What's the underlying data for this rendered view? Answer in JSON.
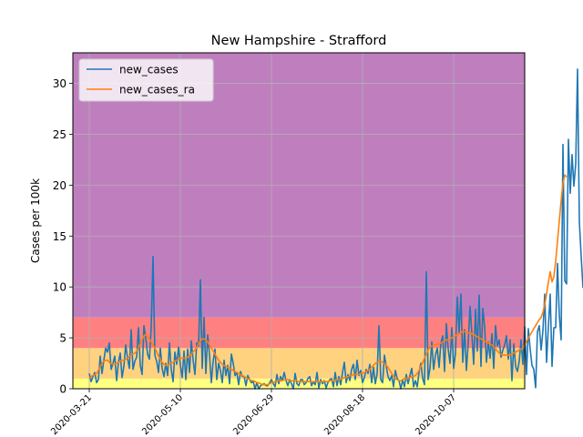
{
  "chart_data": {
    "type": "line",
    "title": "New Hampshire - Strafford",
    "xlabel": "",
    "ylabel": "Cases per 100k",
    "x_start": "2020-03-21",
    "xlim": [
      "2020-03-12",
      "2020-11-15"
    ],
    "ylim": [
      0,
      33
    ],
    "xticks": [
      "2020-03-21",
      "2020-05-10",
      "2020-06-29",
      "2020-08-18",
      "2020-10-07"
    ],
    "yticks": [
      0,
      5,
      10,
      15,
      20,
      25,
      30
    ],
    "grid": true,
    "legend_position": "upper-left",
    "bands": [
      {
        "from": 0,
        "to": 1,
        "color": "#ffff80"
      },
      {
        "from": 1,
        "to": 4,
        "color": "#ffd280"
      },
      {
        "from": 4,
        "to": 7,
        "color": "#ff8080"
      },
      {
        "from": 7,
        "to": 33,
        "color": "#bf7fbf"
      }
    ],
    "series": [
      {
        "name": "new_cases",
        "color": "#1f77b4",
        "values": [
          1.5,
          0.7,
          1.2,
          1.6,
          0.6,
          0.9,
          3.2,
          1.5,
          2.8,
          4.0,
          3.6,
          4.5,
          1.9,
          2.5,
          3.2,
          0.8,
          2.6,
          3.5,
          1.1,
          2.2,
          4.3,
          3.0,
          2.0,
          5.8,
          1.9,
          2.7,
          3.1,
          6.0,
          2.3,
          1.4,
          6.2,
          5.0,
          3.4,
          2.9,
          6.0,
          13.0,
          3.3,
          2.7,
          1.6,
          4.0,
          2.0,
          1.2,
          2.5,
          1.3,
          4.5,
          1.9,
          0.7,
          3.6,
          2.4,
          4.1,
          2.3,
          1.1,
          3.7,
          0.9,
          3.9,
          1.6,
          4.7,
          2.8,
          1.4,
          4.5,
          4.2,
          10.7,
          2.0,
          7.0,
          1.5,
          5.3,
          3.3,
          0.6,
          2.7,
          3.9,
          0.9,
          2.5,
          1.8,
          0.6,
          2.8,
          1.3,
          2.3,
          0.5,
          3.4,
          2.5,
          1.3,
          1.6,
          0.4,
          1.7,
          1.2,
          1.2,
          0.3,
          1.3,
          0.9,
          0.6,
          0.7,
          0.0,
          0.6,
          0.0,
          0.3,
          0.4,
          0.5,
          0.3,
          0.3,
          0.6,
          0.9,
          0.5,
          0.2,
          1.4,
          0.5,
          1.2,
          0.8,
          1.6,
          0.8,
          0.3,
          0.9,
          0.5,
          0.0,
          1.5,
          0.5,
          0.3,
          0.9,
          0.9,
          0.4,
          0.6,
          1.0,
          1.2,
          0.3,
          0.7,
          0.4,
          1.6,
          0.1,
          0.9,
          0.5,
          0.8,
          0.1,
          0.6,
          0.9,
          1.0,
          0.2,
          1.6,
          0.3,
          1.2,
          0.4,
          1.6,
          2.6,
          0.6,
          1.4,
          0.8,
          1.9,
          2.4,
          0.9,
          2.8,
          1.3,
          1.8,
          0.6,
          1.1,
          1.9,
          1.5,
          2.4,
          0.6,
          2.1,
          0.5,
          1.5,
          6.2,
          0.9,
          0.6,
          3.3,
          2.2,
          1.2,
          0.8,
          1.3,
          0.2,
          1.8,
          1.0,
          0.8,
          0.0,
          0.9,
          0.2,
          1.4,
          0.5,
          1.3,
          2.0,
          0.2,
          0.8,
          0.2,
          1.6,
          2.5,
          1.0,
          0.4,
          11.5,
          0.9,
          2.0,
          4.6,
          1.9,
          3.3,
          4.0,
          2.1,
          4.5,
          5.2,
          1.7,
          6.4,
          3.9,
          2.5,
          6.0,
          2.0,
          3.5,
          9.0,
          5.5,
          9.3,
          2.6,
          5.8,
          1.8,
          4.5,
          8.1,
          5.4,
          2.4,
          7.8,
          3.7,
          9.2,
          2.2,
          7.9,
          6.1,
          2.6,
          4.6,
          3.0,
          5.4,
          2.0,
          6.2,
          4.2,
          4.8,
          3.1,
          3.8,
          4.3,
          5.2,
          2.9,
          4.8,
          0.8,
          4.4,
          2.2,
          1.7,
          2.7,
          4.8,
          2.4,
          6.1,
          1.4,
          5.9,
          3.9,
          2.3,
          1.9,
          0.1,
          5.6,
          6.2,
          3.8,
          5.7,
          9.3,
          2.6,
          6.1,
          9.3,
          2.2,
          6.0,
          6.0,
          12.3,
          7.2,
          4.8,
          24.0,
          10.6,
          10.3,
          24.5,
          19.2,
          23.0,
          19.9,
          22.1,
          31.4,
          16.4,
          13.0,
          9.9
        ]
      },
      {
        "name": "new_cases_ra",
        "color": "#ff7f0e",
        "values": [
          1.0,
          1.2,
          1.3,
          1.4,
          1.5,
          1.8,
          2.2,
          2.5,
          2.7,
          2.8,
          2.8,
          2.6,
          2.5,
          2.4,
          2.4,
          2.5,
          2.6,
          2.7,
          2.8,
          2.8,
          2.9,
          3.0,
          3.2,
          3.3,
          3.4,
          3.5,
          3.7,
          4.0,
          4.4,
          4.8,
          5.2,
          5.3,
          5.1,
          4.9,
          4.6,
          4.3,
          4.0,
          3.6,
          3.2,
          2.9,
          2.6,
          2.4,
          2.3,
          2.3,
          2.4,
          2.5,
          2.6,
          2.7,
          2.8,
          2.9,
          3.0,
          3.0,
          3.0,
          3.0,
          3.1,
          3.2,
          3.4,
          3.6,
          3.8,
          4.1,
          4.4,
          4.7,
          4.9,
          4.9,
          4.8,
          4.6,
          4.3,
          4.0,
          3.7,
          3.4,
          3.1,
          2.8,
          2.6,
          2.4,
          2.3,
          2.2,
          2.1,
          2.0,
          1.9,
          1.8,
          1.7,
          1.6,
          1.5,
          1.4,
          1.3,
          1.2,
          1.1,
          1.0,
          0.9,
          0.8,
          0.8,
          0.7,
          0.6,
          0.6,
          0.5,
          0.4,
          0.4,
          0.4,
          0.4,
          0.5,
          0.6,
          0.6,
          0.7,
          0.7,
          0.8,
          0.8,
          0.8,
          0.9,
          0.9,
          0.9,
          0.8,
          0.8,
          0.8,
          0.8,
          0.8,
          0.7,
          0.7,
          0.7,
          0.7,
          0.7,
          0.7,
          0.7,
          0.7,
          0.7,
          0.7,
          0.7,
          0.7,
          0.7,
          0.7,
          0.7,
          0.7,
          0.7,
          0.8,
          0.8,
          0.8,
          0.8,
          0.9,
          0.9,
          1.0,
          1.0,
          1.1,
          1.1,
          1.2,
          1.3,
          1.3,
          1.4,
          1.4,
          1.4,
          1.4,
          1.5,
          1.5,
          1.6,
          1.7,
          1.8,
          1.9,
          2.1,
          2.3,
          2.5,
          2.6,
          2.7,
          2.7,
          2.6,
          2.5,
          2.3,
          2.1,
          1.8,
          1.5,
          1.2,
          1.0,
          0.9,
          0.8,
          0.8,
          0.9,
          1.0,
          1.0,
          1.1,
          1.1,
          1.2,
          1.2,
          1.3,
          1.5,
          1.8,
          2.2,
          2.6,
          3.0,
          3.4,
          3.8,
          4.1,
          4.2,
          4.3,
          4.3,
          4.3,
          4.4,
          4.5,
          4.6,
          4.7,
          4.8,
          4.8,
          4.9,
          5.0,
          5.1,
          5.2,
          5.3,
          5.4,
          5.5,
          5.6,
          5.6,
          5.6,
          5.5,
          5.5,
          5.4,
          5.3,
          5.2,
          5.1,
          5.0,
          4.9,
          4.8,
          4.7,
          4.6,
          4.5,
          4.4,
          4.3,
          4.1,
          3.9,
          3.7,
          3.5,
          3.4,
          3.3,
          3.3,
          3.3,
          3.3,
          3.3,
          3.4,
          3.5,
          3.6,
          3.7,
          3.8,
          3.9,
          4.0,
          4.3,
          4.6,
          5.0,
          5.3,
          5.6,
          5.9,
          6.2,
          6.5,
          6.8,
          7.0,
          7.5,
          8.3,
          9.3,
          10.5,
          11.5,
          10.5,
          11.0,
          12.5,
          14.5,
          16.5,
          18.5,
          20.2,
          21.0,
          20.8
        ]
      }
    ]
  }
}
